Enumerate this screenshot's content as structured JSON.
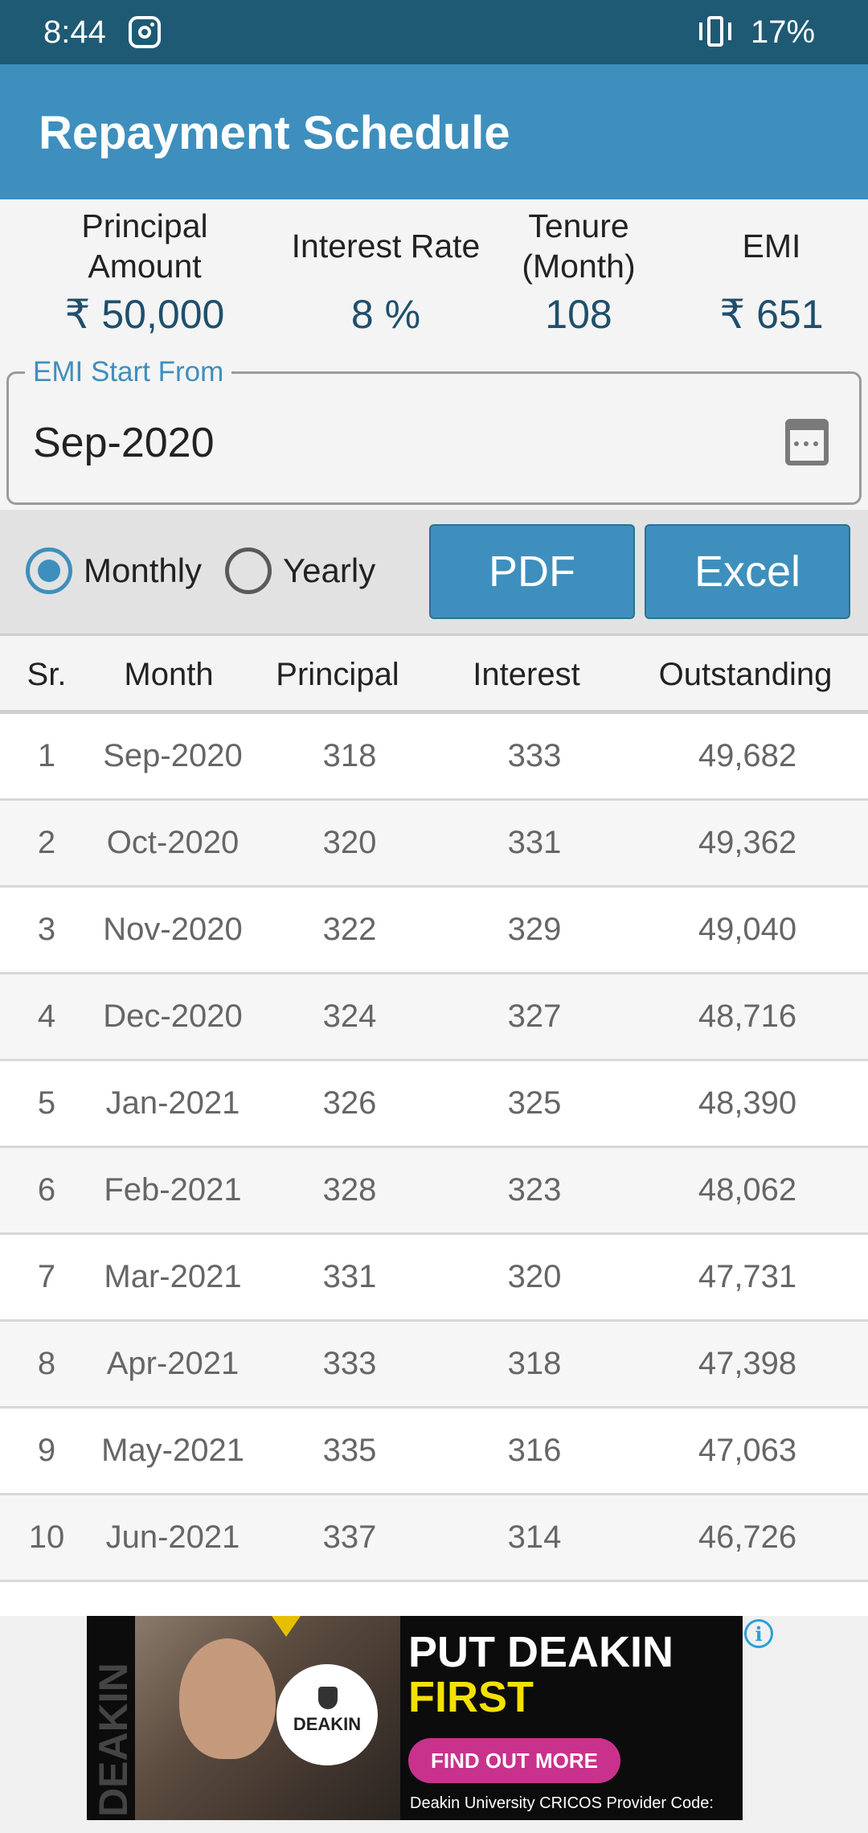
{
  "status_bar": {
    "time": "8:44",
    "battery": "17%",
    "icons": [
      "instagram-icon",
      "vibrate-icon"
    ]
  },
  "app_bar": {
    "title": "Repayment Schedule"
  },
  "summary": {
    "principal_label": "Principal Amount",
    "principal_value": "₹ 50,000",
    "rate_label": "Interest Rate",
    "rate_value": "8 %",
    "tenure_label": "Tenure (Month)",
    "tenure_value": "108",
    "emi_label": "EMI",
    "emi_value": "₹ 651"
  },
  "emi_start": {
    "label": "EMI Start From",
    "value": "Sep-2020",
    "icon": "calendar-icon"
  },
  "view_mode": {
    "monthly_label": "Monthly",
    "yearly_label": "Yearly",
    "selected": "Monthly"
  },
  "export": {
    "pdf_label": "PDF",
    "excel_label": "Excel"
  },
  "colors": {
    "accent": "#3e8fbd",
    "status_bar": "#1f5a75"
  },
  "table": {
    "headers": {
      "sr": "Sr.",
      "month": "Month",
      "principal": "Principal",
      "interest": "Interest",
      "outstanding": "Outstanding"
    },
    "rows": [
      {
        "sr": "1",
        "month": "Sep-2020",
        "principal": "318",
        "interest": "333",
        "outstanding": "49,682"
      },
      {
        "sr": "2",
        "month": "Oct-2020",
        "principal": "320",
        "interest": "331",
        "outstanding": "49,362"
      },
      {
        "sr": "3",
        "month": "Nov-2020",
        "principal": "322",
        "interest": "329",
        "outstanding": "49,040"
      },
      {
        "sr": "4",
        "month": "Dec-2020",
        "principal": "324",
        "interest": "327",
        "outstanding": "48,716"
      },
      {
        "sr": "5",
        "month": "Jan-2021",
        "principal": "326",
        "interest": "325",
        "outstanding": "48,390"
      },
      {
        "sr": "6",
        "month": "Feb-2021",
        "principal": "328",
        "interest": "323",
        "outstanding": "48,062"
      },
      {
        "sr": "7",
        "month": "Mar-2021",
        "principal": "331",
        "interest": "320",
        "outstanding": "47,731"
      },
      {
        "sr": "8",
        "month": "Apr-2021",
        "principal": "333",
        "interest": "318",
        "outstanding": "47,398"
      },
      {
        "sr": "9",
        "month": "May-2021",
        "principal": "335",
        "interest": "316",
        "outstanding": "47,063"
      },
      {
        "sr": "10",
        "month": "Jun-2021",
        "principal": "337",
        "interest": "314",
        "outstanding": "46,726"
      }
    ]
  },
  "ad": {
    "headline_1": "PUT DEAKIN",
    "headline_2": "FIRST",
    "cta": "FIND OUT MORE",
    "footer": "Deakin University CRICOS Provider Code:",
    "seal_text": "DEAKIN",
    "side_text": "DEAKIN",
    "info_glyph": "i"
  }
}
